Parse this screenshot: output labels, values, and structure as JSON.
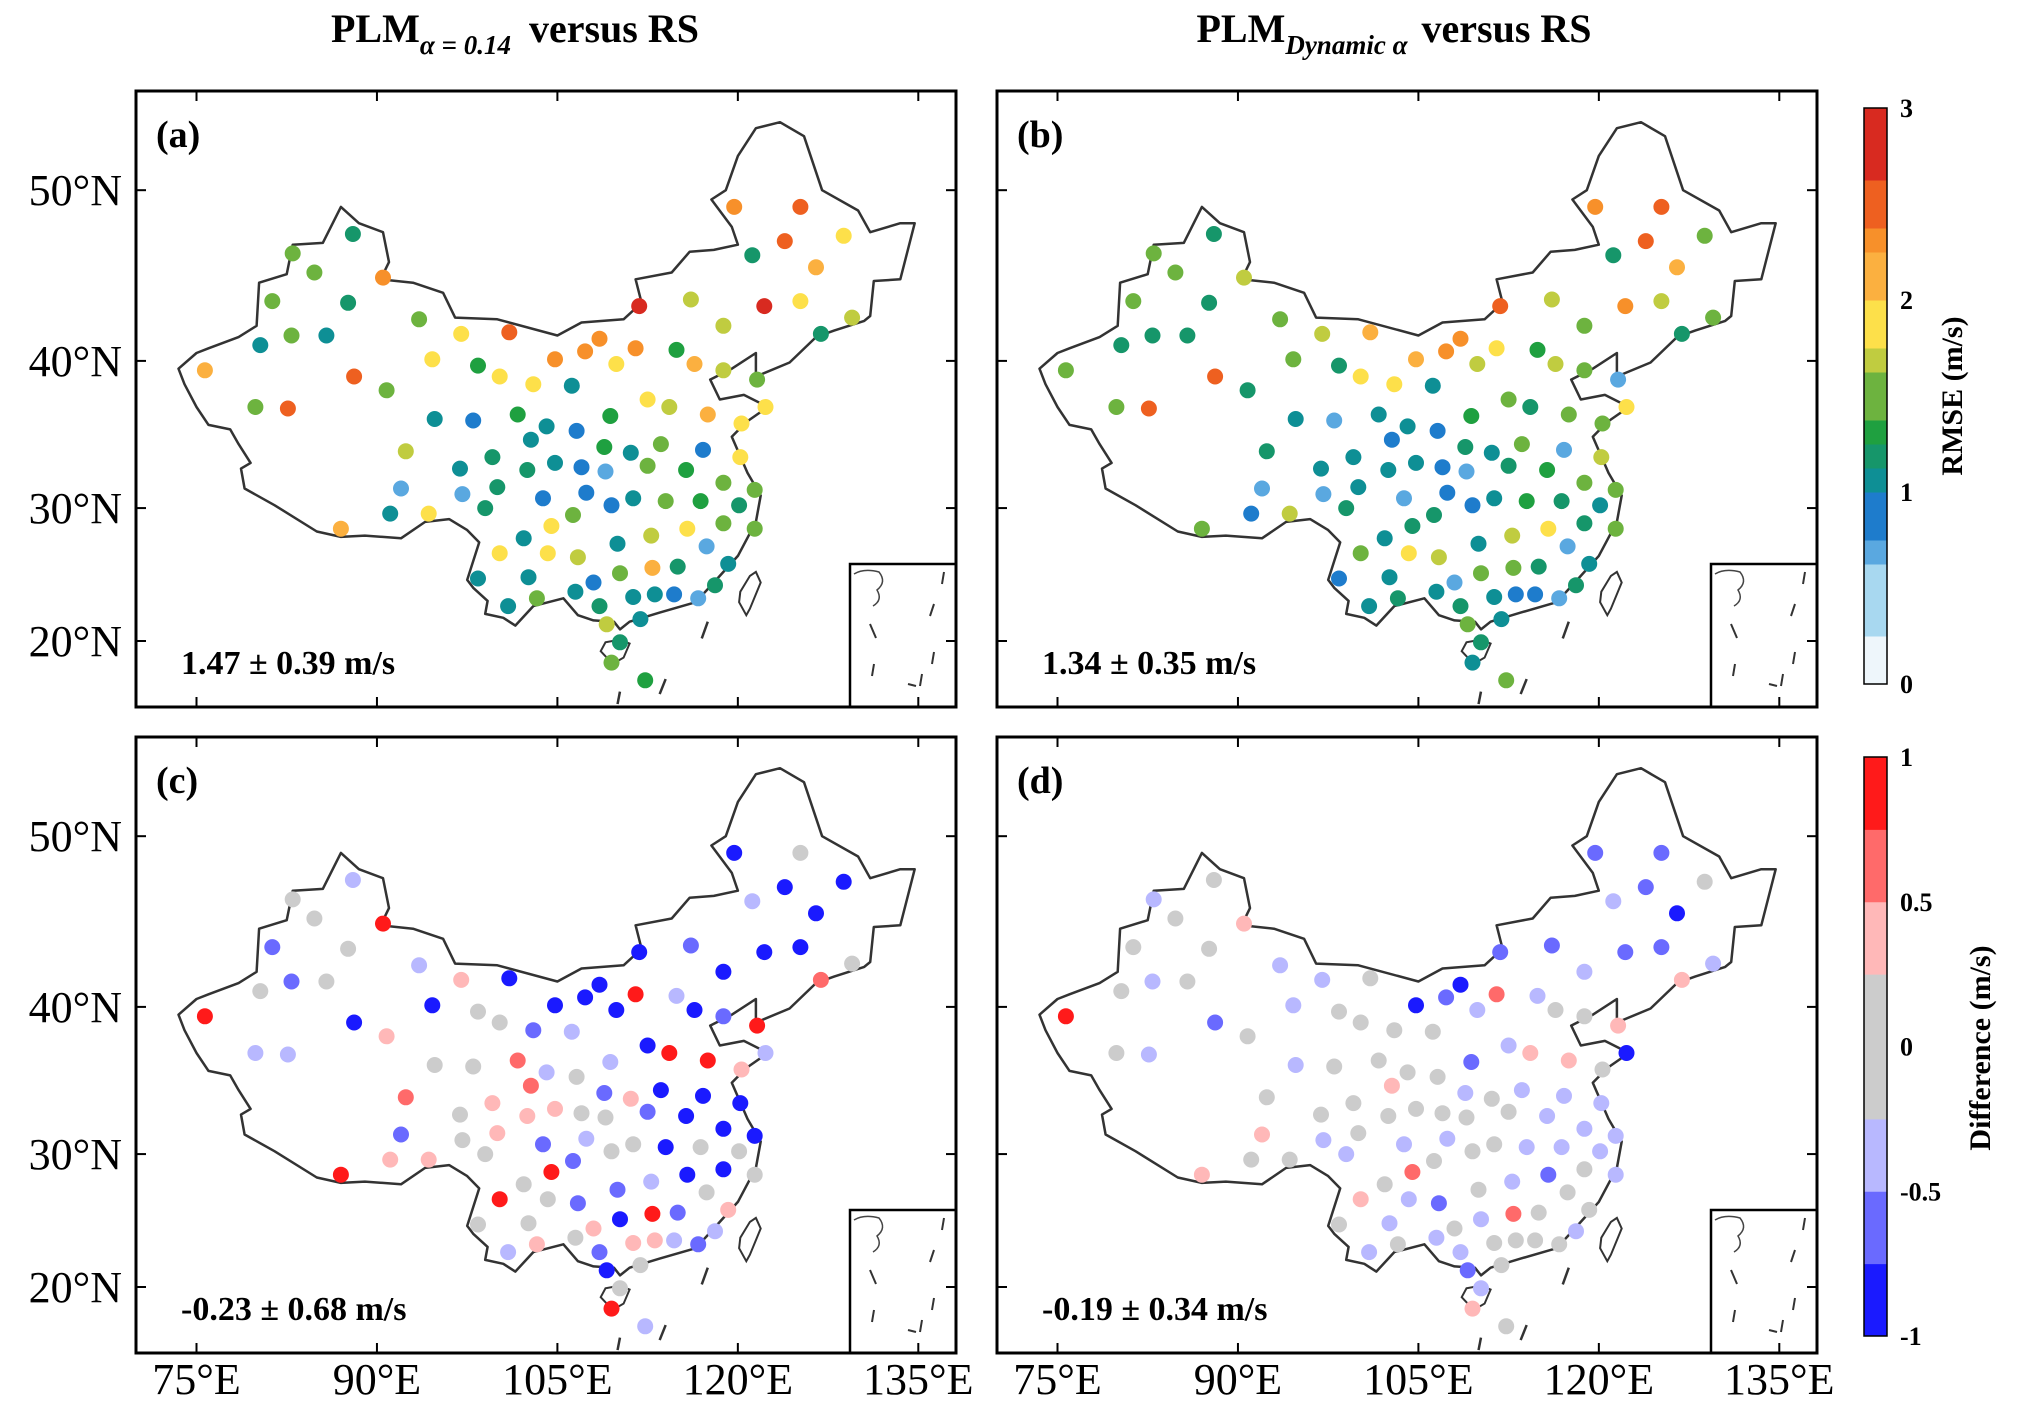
{
  "titles": [
    {
      "main": "PLM",
      "sub": "α = 0.14",
      "rest": "versus RS"
    },
    {
      "main": "PLM",
      "sub": "Dynamic α",
      "rest": "versus RS"
    }
  ],
  "panels": [
    {
      "label": "(a)",
      "stat": "1.47 ± 0.39 m/s",
      "field": "a",
      "scale": "rmse"
    },
    {
      "label": "(b)",
      "stat": "1.34 ± 0.35 m/s",
      "field": "b",
      "scale": "diff_placeholder_none"
    },
    {
      "label": "(c)",
      "stat": "-0.23 ± 0.68 m/s",
      "field": "c",
      "scale": "diff"
    },
    {
      "label": "(d)",
      "stat": "-0.19 ± 0.34 m/s",
      "field": "d",
      "scale": "diff"
    }
  ],
  "lat_ticks": [
    {
      "value": 50,
      "label": "50°N"
    },
    {
      "value": 40,
      "label": "40°N"
    },
    {
      "value": 30,
      "label": "30°N"
    },
    {
      "value": 20,
      "label": "20°N"
    }
  ],
  "lon_ticks": [
    {
      "value": 75,
      "label": "75°E"
    },
    {
      "value": 90,
      "label": "90°E"
    },
    {
      "value": 105,
      "label": "105°E"
    },
    {
      "value": 120,
      "label": "120°E"
    },
    {
      "value": 135,
      "label": "135°E"
    }
  ],
  "colorbars": {
    "rmse": {
      "label": "RMSE (m/s)",
      "range": [
        0,
        3
      ],
      "ticks": [
        {
          "value": 0,
          "label": "0"
        },
        {
          "value": 1,
          "label": "1"
        },
        {
          "value": 2,
          "label": "2"
        },
        {
          "value": 3,
          "label": "3"
        }
      ],
      "stops": [
        [
          0,
          "#eef6fb"
        ],
        [
          0.3,
          "#a8d8f0"
        ],
        [
          0.6,
          "#5aa8e0"
        ],
        [
          0.8,
          "#1e7ccc"
        ],
        [
          0.95,
          "#0e8f95"
        ],
        [
          1.1,
          "#16966a"
        ],
        [
          1.25,
          "#1fa040"
        ],
        [
          1.4,
          "#6db33f"
        ],
        [
          1.6,
          "#c0cc40"
        ],
        [
          1.8,
          "#fde04a"
        ],
        [
          2.0,
          "#fbb040"
        ],
        [
          2.2,
          "#f7902a"
        ],
        [
          2.4,
          "#ee6020"
        ],
        [
          2.6,
          "#d82a20"
        ],
        [
          3.0,
          "#8b0010"
        ]
      ]
    },
    "diff": {
      "label": "Difference (m/s)",
      "range": [
        -1,
        1
      ],
      "ticks": [
        {
          "value": 1,
          "label": "1"
        },
        {
          "value": 0.5,
          "label": "0.5"
        },
        {
          "value": 0,
          "label": "0"
        },
        {
          "value": -0.5,
          "label": "-0.5"
        },
        {
          "value": -1,
          "label": "-1"
        }
      ],
      "bins": [
        [
          -1,
          -0.75,
          "#1a1aff"
        ],
        [
          -0.75,
          -0.5,
          "#6a6aff"
        ],
        [
          -0.5,
          -0.25,
          "#b8b8ff"
        ],
        [
          -0.25,
          0.25,
          "#cccccc"
        ],
        [
          0.25,
          0.5,
          "#ffb8b8"
        ],
        [
          0.5,
          0.75,
          "#ff6a6a"
        ],
        [
          0.75,
          1,
          "#ff1a1a"
        ]
      ]
    }
  },
  "stations": [
    {
      "lon": 119.7,
      "lat": 49.1,
      "a": 2.2,
      "b": 2.2,
      "c": -0.85,
      "d": -0.6
    },
    {
      "lon": 125.2,
      "lat": 49.1,
      "a": 2.5,
      "b": 2.4,
      "c": 0,
      "d": -0.6
    },
    {
      "lon": 128.8,
      "lat": 47.5,
      "a": 1.8,
      "b": 1.45,
      "c": -0.85,
      "d": 0
    },
    {
      "lon": 123.9,
      "lat": 47.2,
      "a": 2.5,
      "b": 2.5,
      "c": -0.85,
      "d": -0.6
    },
    {
      "lon": 121.2,
      "lat": 46.4,
      "a": 1.2,
      "b": 1.2,
      "c": -0.35,
      "d": -0.35
    },
    {
      "lon": 126.5,
      "lat": 45.7,
      "a": 2.0,
      "b": 2.0,
      "c": -0.85,
      "d": -0.85
    },
    {
      "lon": 125.2,
      "lat": 43.7,
      "a": 1.95,
      "b": 1.6,
      "c": -0.85,
      "d": -0.6
    },
    {
      "lon": 122.2,
      "lat": 43.4,
      "a": 2.9,
      "b": 2.3,
      "c": -0.85,
      "d": -0.6
    },
    {
      "lon": 116.1,
      "lat": 43.8,
      "a": 1.65,
      "b": 1.6,
      "c": -0.6,
      "d": -0.6
    },
    {
      "lon": 111.8,
      "lat": 43.4,
      "a": 2.6,
      "b": 2.4,
      "c": -0.85,
      "d": -0.6
    },
    {
      "lon": 129.5,
      "lat": 42.7,
      "a": 1.6,
      "b": 1.45,
      "c": 0,
      "d": -0.35
    },
    {
      "lon": 126.9,
      "lat": 41.7,
      "a": 1.2,
      "b": 1.1,
      "c": 0.6,
      "d": 0.35
    },
    {
      "lon": 118.8,
      "lat": 42.2,
      "a": 1.6,
      "b": 1.45,
      "c": -0.85,
      "d": -0.35
    },
    {
      "lon": 88.0,
      "lat": 47.6,
      "a": 1.2,
      "b": 1.2,
      "c": -0.35,
      "d": 0
    },
    {
      "lon": 83.0,
      "lat": 46.5,
      "a": 1.4,
      "b": 1.4,
      "c": 0,
      "d": -0.35
    },
    {
      "lon": 84.8,
      "lat": 45.4,
      "a": 1.5,
      "b": 1.45,
      "c": 0,
      "d": 0
    },
    {
      "lon": 90.5,
      "lat": 45.1,
      "a": 2.2,
      "b": 1.65,
      "c": 0.85,
      "d": 0.35
    },
    {
      "lon": 81.3,
      "lat": 43.7,
      "a": 1.4,
      "b": 1.4,
      "c": -0.6,
      "d": 0
    },
    {
      "lon": 87.6,
      "lat": 43.6,
      "a": 1.2,
      "b": 1.2,
      "c": 0,
      "d": 0
    },
    {
      "lon": 93.5,
      "lat": 42.6,
      "a": 1.45,
      "b": 1.45,
      "c": -0.35,
      "d": -0.35
    },
    {
      "lon": 82.9,
      "lat": 41.6,
      "a": 1.4,
      "b": 1.2,
      "c": -0.6,
      "d": -0.35
    },
    {
      "lon": 85.8,
      "lat": 41.6,
      "a": 1.05,
      "b": 1.1,
      "c": 0,
      "d": 0
    },
    {
      "lon": 80.3,
      "lat": 41.0,
      "a": 1.05,
      "b": 1.1,
      "c": 0,
      "d": 0
    },
    {
      "lon": 75.7,
      "lat": 39.4,
      "a": 2.0,
      "b": 1.45,
      "c": 0.85,
      "d": 0.85
    },
    {
      "lon": 88.1,
      "lat": 39.0,
      "a": 2.4,
      "b": 2.4,
      "c": -0.85,
      "d": -0.6
    },
    {
      "lon": 79.9,
      "lat": 37.0,
      "a": 1.4,
      "b": 1.4,
      "c": -0.35,
      "d": 0
    },
    {
      "lon": 82.6,
      "lat": 36.9,
      "a": 2.4,
      "b": 2.4,
      "c": -0.35,
      "d": -0.35
    },
    {
      "lon": 90.8,
      "lat": 38.1,
      "a": 1.45,
      "b": 1.2,
      "c": 0.35,
      "d": 0
    },
    {
      "lon": 97.0,
      "lat": 41.7,
      "a": 1.8,
      "b": 1.6,
      "c": 0.35,
      "d": -0.35
    },
    {
      "lon": 101.0,
      "lat": 41.8,
      "a": 2.4,
      "b": 2.0,
      "c": -0.85,
      "d": 0
    },
    {
      "lon": 94.6,
      "lat": 40.1,
      "a": 1.85,
      "b": 1.45,
      "c": -0.85,
      "d": -0.35
    },
    {
      "lon": 98.4,
      "lat": 39.7,
      "a": 1.35,
      "b": 1.2,
      "c": 0,
      "d": 0
    },
    {
      "lon": 100.2,
      "lat": 39.0,
      "a": 1.8,
      "b": 1.8,
      "c": 0,
      "d": 0
    },
    {
      "lon": 103.0,
      "lat": 38.5,
      "a": 1.8,
      "b": 1.8,
      "c": -0.6,
      "d": 0
    },
    {
      "lon": 104.8,
      "lat": 40.1,
      "a": 2.2,
      "b": 2.0,
      "c": -0.85,
      "d": -0.85
    },
    {
      "lon": 107.3,
      "lat": 40.6,
      "a": 2.3,
      "b": 2.2,
      "c": -0.85,
      "d": -0.6
    },
    {
      "lon": 108.5,
      "lat": 41.4,
      "a": 2.2,
      "b": 2.2,
      "c": -0.85,
      "d": -0.85
    },
    {
      "lon": 111.5,
      "lat": 40.8,
      "a": 2.2,
      "b": 1.85,
      "c": 0.85,
      "d": 0.6
    },
    {
      "lon": 109.9,
      "lat": 39.8,
      "a": 1.95,
      "b": 1.6,
      "c": -0.85,
      "d": -0.35
    },
    {
      "lon": 114.9,
      "lat": 40.7,
      "a": 1.35,
      "b": 1.35,
      "c": -0.35,
      "d": -0.35
    },
    {
      "lon": 116.4,
      "lat": 39.8,
      "a": 2.0,
      "b": 1.6,
      "c": -0.85,
      "d": 0
    },
    {
      "lon": 118.8,
      "lat": 39.4,
      "a": 1.6,
      "b": 1.45,
      "c": -0.6,
      "d": 0
    },
    {
      "lon": 121.6,
      "lat": 38.8,
      "a": 1.4,
      "b": 0.75,
      "c": 0.85,
      "d": 0.35
    },
    {
      "lon": 106.2,
      "lat": 38.4,
      "a": 1.05,
      "b": 0.95,
      "c": -0.35,
      "d": 0
    },
    {
      "lon": 112.5,
      "lat": 37.5,
      "a": 1.8,
      "b": 1.4,
      "c": -0.85,
      "d": -0.35
    },
    {
      "lon": 114.3,
      "lat": 37.0,
      "a": 1.6,
      "b": 1.2,
      "c": 0.85,
      "d": 0.35
    },
    {
      "lon": 117.5,
      "lat": 36.5,
      "a": 2.0,
      "b": 1.4,
      "c": 0.85,
      "d": 0.35
    },
    {
      "lon": 122.3,
      "lat": 37.0,
      "a": 1.8,
      "b": 1.8,
      "c": -0.35,
      "d": -0.85
    },
    {
      "lon": 120.3,
      "lat": 35.9,
      "a": 1.8,
      "b": 1.45,
      "c": 0.35,
      "d": 0
    },
    {
      "lon": 94.8,
      "lat": 36.2,
      "a": 1.05,
      "b": 0.95,
      "c": 0,
      "d": -0.35
    },
    {
      "lon": 98.0,
      "lat": 36.1,
      "a": 0.9,
      "b": 0.75,
      "c": 0,
      "d": 0
    },
    {
      "lon": 101.7,
      "lat": 36.5,
      "a": 1.35,
      "b": 0.95,
      "c": 0.6,
      "d": 0
    },
    {
      "lon": 104.1,
      "lat": 35.7,
      "a": 1.05,
      "b": 1.05,
      "c": -0.35,
      "d": 0
    },
    {
      "lon": 106.6,
      "lat": 35.4,
      "a": 0.9,
      "b": 0.9,
      "c": 0,
      "d": 0
    },
    {
      "lon": 109.4,
      "lat": 36.4,
      "a": 1.35,
      "b": 1.35,
      "c": -0.35,
      "d": -0.6
    },
    {
      "lon": 102.8,
      "lat": 34.8,
      "a": 1.05,
      "b": 0.8,
      "c": 0.6,
      "d": 0.35
    },
    {
      "lon": 92.4,
      "lat": 34.0,
      "a": 1.6,
      "b": 1.2,
      "c": 0.6,
      "d": 0
    },
    {
      "lon": 108.9,
      "lat": 34.3,
      "a": 1.35,
      "b": 1.2,
      "c": -0.6,
      "d": -0.35
    },
    {
      "lon": 111.1,
      "lat": 33.9,
      "a": 1.05,
      "b": 0.95,
      "c": 0.35,
      "d": 0
    },
    {
      "lon": 113.6,
      "lat": 34.5,
      "a": 1.4,
      "b": 1.4,
      "c": -0.85,
      "d": -0.35
    },
    {
      "lon": 117.1,
      "lat": 34.1,
      "a": 0.9,
      "b": 0.6,
      "c": -0.85,
      "d": -0.35
    },
    {
      "lon": 120.2,
      "lat": 33.6,
      "a": 1.8,
      "b": 1.6,
      "c": -0.85,
      "d": -0.35
    },
    {
      "lon": 99.6,
      "lat": 33.6,
      "a": 1.15,
      "b": 0.95,
      "c": 0.35,
      "d": 0
    },
    {
      "lon": 104.8,
      "lat": 33.2,
      "a": 1.05,
      "b": 0.95,
      "c": 0.35,
      "d": 0
    },
    {
      "lon": 107.0,
      "lat": 32.9,
      "a": 0.85,
      "b": 0.85,
      "c": 0,
      "d": 0
    },
    {
      "lon": 109.0,
      "lat": 32.6,
      "a": 0.75,
      "b": 0.75,
      "c": 0,
      "d": 0
    },
    {
      "lon": 112.5,
      "lat": 33.0,
      "a": 1.4,
      "b": 1.2,
      "c": -0.6,
      "d": 0
    },
    {
      "lon": 115.7,
      "lat": 32.7,
      "a": 1.35,
      "b": 1.35,
      "c": -0.85,
      "d": -0.35
    },
    {
      "lon": 96.9,
      "lat": 32.8,
      "a": 1.05,
      "b": 1.05,
      "c": 0,
      "d": 0
    },
    {
      "lon": 102.5,
      "lat": 32.7,
      "a": 1.15,
      "b": 0.95,
      "c": 0.35,
      "d": 0
    },
    {
      "lon": 118.8,
      "lat": 31.8,
      "a": 1.45,
      "b": 1.45,
      "c": -0.85,
      "d": -0.35
    },
    {
      "lon": 121.4,
      "lat": 31.3,
      "a": 1.45,
      "b": 1.4,
      "c": -0.85,
      "d": -0.35
    },
    {
      "lon": 92.0,
      "lat": 31.4,
      "a": 0.75,
      "b": 0.65,
      "c": -0.6,
      "d": 0.35
    },
    {
      "lon": 97.1,
      "lat": 31.0,
      "a": 0.65,
      "b": 0.65,
      "c": 0,
      "d": -0.35
    },
    {
      "lon": 100.0,
      "lat": 31.5,
      "a": 1.15,
      "b": 1.05,
      "c": 0.35,
      "d": 0
    },
    {
      "lon": 107.4,
      "lat": 31.1,
      "a": 0.9,
      "b": 0.9,
      "c": -0.35,
      "d": -0.35
    },
    {
      "lon": 103.8,
      "lat": 30.7,
      "a": 0.85,
      "b": 0.75,
      "c": -0.6,
      "d": -0.35
    },
    {
      "lon": 111.3,
      "lat": 30.7,
      "a": 1.05,
      "b": 1.05,
      "c": 0,
      "d": 0
    },
    {
      "lon": 114.0,
      "lat": 30.5,
      "a": 1.4,
      "b": 1.35,
      "c": -0.85,
      "d": -0.35
    },
    {
      "lon": 116.9,
      "lat": 30.5,
      "a": 1.35,
      "b": 1.15,
      "c": 0,
      "d": -0.35
    },
    {
      "lon": 120.1,
      "lat": 30.2,
      "a": 1.15,
      "b": 1.05,
      "c": 0,
      "d": -0.35
    },
    {
      "lon": 99.0,
      "lat": 30.0,
      "a": 1.15,
      "b": 1.15,
      "c": 0,
      "d": -0.35
    },
    {
      "lon": 109.5,
      "lat": 30.2,
      "a": 0.85,
      "b": 0.85,
      "c": 0,
      "d": 0
    },
    {
      "lon": 91.1,
      "lat": 29.6,
      "a": 0.95,
      "b": 0.9,
      "c": 0.35,
      "d": 0
    },
    {
      "lon": 94.3,
      "lat": 29.6,
      "a": 1.95,
      "b": 1.6,
      "c": 0.35,
      "d": 0
    },
    {
      "lon": 106.3,
      "lat": 29.5,
      "a": 1.4,
      "b": 1.15,
      "c": -0.6,
      "d": 0
    },
    {
      "lon": 118.8,
      "lat": 28.9,
      "a": 1.45,
      "b": 1.15,
      "c": -0.85,
      "d": 0
    },
    {
      "lon": 121.4,
      "lat": 28.5,
      "a": 1.5,
      "b": 1.4,
      "c": 0,
      "d": -0.35
    },
    {
      "lon": 87.0,
      "lat": 28.5,
      "a": 2.0,
      "b": 1.4,
      "c": 0.85,
      "d": 0.35
    },
    {
      "lon": 104.5,
      "lat": 28.7,
      "a": 1.8,
      "b": 1.15,
      "c": 0.85,
      "d": 0.6
    },
    {
      "lon": 115.8,
      "lat": 28.5,
      "a": 1.95,
      "b": 1.95,
      "c": -0.85,
      "d": -0.6
    },
    {
      "lon": 102.2,
      "lat": 27.8,
      "a": 1.05,
      "b": 1.05,
      "c": 0,
      "d": 0
    },
    {
      "lon": 112.8,
      "lat": 28.0,
      "a": 1.6,
      "b": 1.6,
      "c": -0.35,
      "d": -0.35
    },
    {
      "lon": 110.0,
      "lat": 27.4,
      "a": 1.05,
      "b": 0.95,
      "c": -0.6,
      "d": 0
    },
    {
      "lon": 117.4,
      "lat": 27.2,
      "a": 0.75,
      "b": 0.75,
      "c": 0,
      "d": 0
    },
    {
      "lon": 100.2,
      "lat": 26.7,
      "a": 1.8,
      "b": 1.4,
      "c": 0.85,
      "d": 0.35
    },
    {
      "lon": 104.2,
      "lat": 26.7,
      "a": 1.95,
      "b": 1.95,
      "c": 0,
      "d": -0.35
    },
    {
      "lon": 106.7,
      "lat": 26.4,
      "a": 1.65,
      "b": 1.6,
      "c": -0.6,
      "d": -0.6
    },
    {
      "lon": 119.2,
      "lat": 25.9,
      "a": 1.05,
      "b": 0.95,
      "c": 0.35,
      "d": 0
    },
    {
      "lon": 112.9,
      "lat": 25.6,
      "a": 2.0,
      "b": 1.4,
      "c": 0.85,
      "d": 0.6
    },
    {
      "lon": 115.0,
      "lat": 25.7,
      "a": 1.15,
      "b": 1.15,
      "c": -0.6,
      "d": 0
    },
    {
      "lon": 110.2,
      "lat": 25.2,
      "a": 1.45,
      "b": 1.4,
      "c": -0.85,
      "d": -0.35
    },
    {
      "lon": 98.4,
      "lat": 24.8,
      "a": 0.95,
      "b": 0.9,
      "c": 0,
      "d": 0
    },
    {
      "lon": 102.6,
      "lat": 24.9,
      "a": 1.05,
      "b": 1.05,
      "c": 0,
      "d": -0.35
    },
    {
      "lon": 108.0,
      "lat": 24.5,
      "a": 0.9,
      "b": 0.75,
      "c": 0.35,
      "d": 0
    },
    {
      "lon": 118.1,
      "lat": 24.3,
      "a": 1.15,
      "b": 1.15,
      "c": -0.35,
      "d": -0.35
    },
    {
      "lon": 106.5,
      "lat": 23.8,
      "a": 1.05,
      "b": 1.05,
      "c": 0,
      "d": -0.35
    },
    {
      "lon": 111.3,
      "lat": 23.4,
      "a": 1.05,
      "b": 0.95,
      "c": 0.35,
      "d": 0
    },
    {
      "lon": 113.1,
      "lat": 23.6,
      "a": 1.05,
      "b": 0.9,
      "c": 0.35,
      "d": 0
    },
    {
      "lon": 114.7,
      "lat": 23.6,
      "a": 0.9,
      "b": 0.9,
      "c": -0.35,
      "d": 0
    },
    {
      "lon": 116.7,
      "lat": 23.3,
      "a": 0.75,
      "b": 0.65,
      "c": -0.6,
      "d": 0
    },
    {
      "lon": 103.3,
      "lat": 23.3,
      "a": 1.4,
      "b": 1.15,
      "c": 0.35,
      "d": 0
    },
    {
      "lon": 100.9,
      "lat": 22.7,
      "a": 1.05,
      "b": 1.05,
      "c": -0.35,
      "d": -0.35
    },
    {
      "lon": 108.5,
      "lat": 22.7,
      "a": 1.15,
      "b": 1.15,
      "c": -0.6,
      "d": -0.35
    },
    {
      "lon": 111.9,
      "lat": 21.7,
      "a": 1.05,
      "b": 0.95,
      "c": 0,
      "d": 0
    },
    {
      "lon": 109.1,
      "lat": 21.3,
      "a": 1.6,
      "b": 1.4,
      "c": -0.85,
      "d": -0.6
    },
    {
      "lon": 110.2,
      "lat": 19.9,
      "a": 1.15,
      "b": 1.15,
      "c": 0,
      "d": -0.35
    },
    {
      "lon": 109.5,
      "lat": 18.3,
      "a": 1.4,
      "b": 0.95,
      "c": 0.85,
      "d": 0.35
    },
    {
      "lon": 112.3,
      "lat": 16.9,
      "a": 1.35,
      "b": 1.4,
      "c": -0.35,
      "d": 0
    }
  ]
}
